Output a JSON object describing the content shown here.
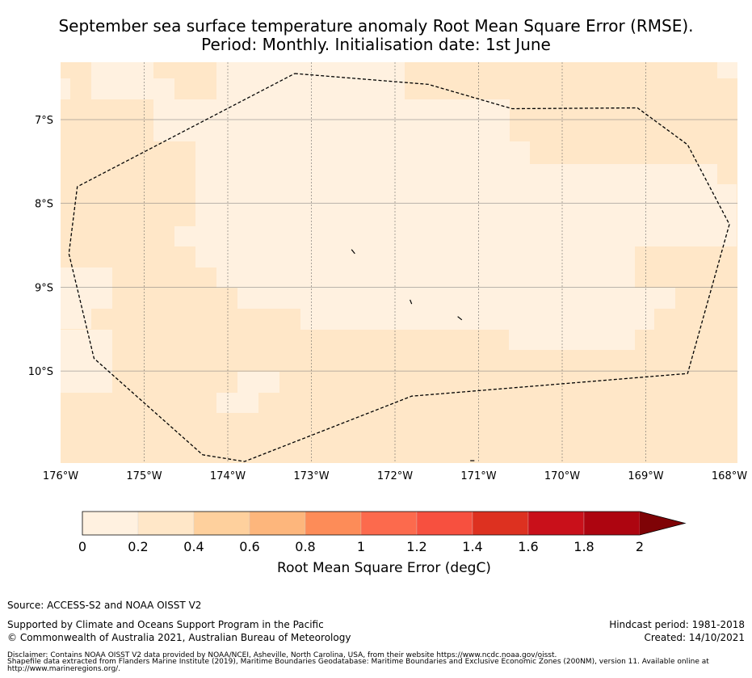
{
  "title_line1": "September sea surface temperature anomaly Root Mean Square Error (RMSE).",
  "title_line2": "Period: Monthly. Initialisation date: 1st June",
  "map": {
    "lon_range": [
      -176,
      -168
    ],
    "lat_range": [
      -11.1,
      -6.3
    ],
    "lon_ticks": [
      {
        "value": -176,
        "label": "176°W"
      },
      {
        "value": -175,
        "label": "175°W"
      },
      {
        "value": -174,
        "label": "174°W"
      },
      {
        "value": -173,
        "label": "173°W"
      },
      {
        "value": -172,
        "label": "172°W"
      },
      {
        "value": -171,
        "label": "171°W"
      },
      {
        "value": -170,
        "label": "170°W"
      },
      {
        "value": -169,
        "label": "169°W"
      },
      {
        "value": -168,
        "label": "168°W"
      }
    ],
    "lat_ticks": [
      {
        "value": -7,
        "label": "7°S"
      },
      {
        "value": -8,
        "label": "8°S"
      },
      {
        "value": -9,
        "label": "9°S"
      },
      {
        "value": -10,
        "label": "10°S"
      }
    ],
    "eez_boundary": [
      [
        -173.2,
        -6.45
      ],
      [
        -171.6,
        -6.58
      ],
      [
        -170.6,
        -6.87
      ],
      [
        -169.1,
        -6.86
      ],
      [
        -168.5,
        -7.3
      ],
      [
        -168.0,
        -8.25
      ],
      [
        -168.5,
        -10.03
      ],
      [
        -171.8,
        -10.3
      ],
      [
        -173.8,
        -11.08
      ],
      [
        -174.3,
        -11.0
      ],
      [
        -175.6,
        -9.85
      ],
      [
        -175.9,
        -8.6
      ],
      [
        -175.8,
        -7.8
      ],
      [
        -173.2,
        -6.45
      ]
    ],
    "islands": [
      [
        [
          -172.52,
          -8.55
        ],
        [
          -172.48,
          -8.6
        ]
      ],
      [
        [
          -171.82,
          -9.15
        ],
        [
          -171.8,
          -9.2
        ]
      ],
      [
        [
          -171.25,
          -9.35
        ],
        [
          -171.2,
          -9.39
        ]
      ],
      [
        [
          -171.1,
          -11.07
        ],
        [
          -171.05,
          -11.07
        ]
      ]
    ]
  },
  "colorbar": {
    "label": "Root Mean Square Error (degC)",
    "ticks": [
      "0",
      "0.2",
      "0.4",
      "0.6",
      "0.8",
      "1",
      "1.2",
      "1.4",
      "1.6",
      "1.8",
      "2"
    ],
    "colors": [
      "#fff1e0",
      "#ffe7c8",
      "#fed09d",
      "#fdb67c",
      "#fd8c58",
      "#fc6a4d",
      "#f7503f",
      "#dd3120",
      "#c9101a",
      "#ad0510"
    ],
    "extend_color": "#7f0306"
  },
  "footer": {
    "source": "Source: ACCESS-S2 and NOAA OISST V2",
    "supported": "Supported by Climate and Oceans Support Program in the Pacific",
    "copyright": "© Commonwealth of Australia 2021, Australian Bureau of Meteorology",
    "hindcast": "Hindcast period: 1981-2018",
    "created": "Created: 14/10/2021",
    "disclaimer1": "Disclaimer: Contains NOAA OISST V2 data provided by NOAA/NCEI, Asheville, North Carolina, USA, from their website https://www.ncdc.noaa.gov/oisst.",
    "disclaimer2": "Shapefile data extracted from Flanders Marine Institute (2019), Maritime Boundaries Geodatabase: Maritime Boundaries and Exclusive Economic Zones (200NM), version 11. Available online at",
    "disclaimer3": "http://www.marineregions.org/."
  }
}
